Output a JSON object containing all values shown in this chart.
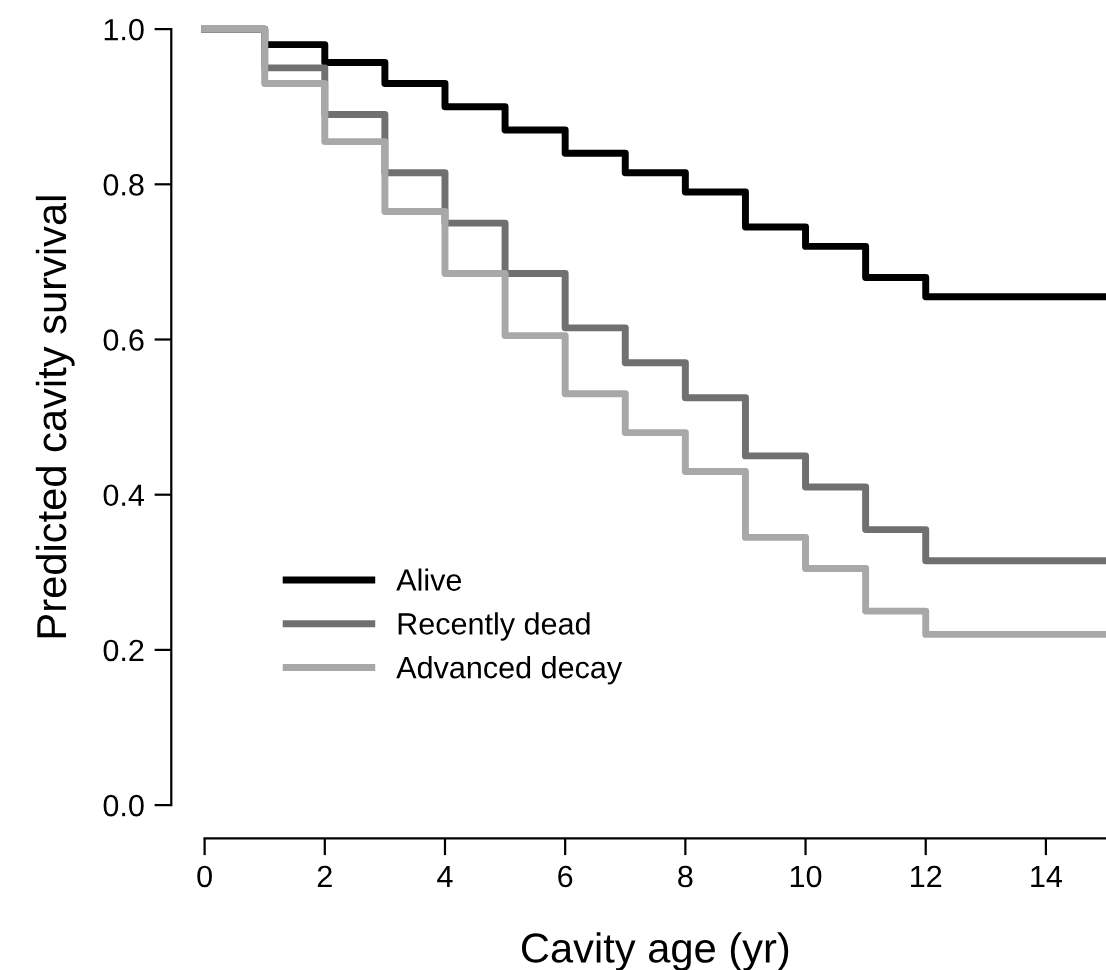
{
  "chart_data": {
    "type": "step",
    "xlabel": "Cavity age (yr)",
    "ylabel": "Predicted cavity survival",
    "xlim": [
      0,
      15
    ],
    "xticks": [
      0,
      2,
      4,
      6,
      8,
      10,
      12,
      14
    ],
    "ylim": [
      0,
      1
    ],
    "yticks": [
      {
        "value": 0,
        "label": "0.0"
      },
      {
        "value": 0.2,
        "label": "0.2"
      },
      {
        "value": 0.4,
        "label": "0.4"
      },
      {
        "value": 0.6,
        "label": "0.6"
      },
      {
        "value": 0.8,
        "label": "0.8"
      },
      {
        "value": 1,
        "label": "1.0"
      }
    ],
    "grid": false,
    "legend": "bottom left",
    "marker": "none",
    "line_style": "solid",
    "series": [
      {
        "name": "Alive",
        "color": "#000000",
        "x": [
          0,
          1,
          2,
          3,
          4,
          5,
          6,
          7,
          8,
          9,
          10,
          11,
          12,
          15
        ],
        "values": [
          1.0,
          0.98,
          0.957,
          0.93,
          0.9,
          0.87,
          0.84,
          0.815,
          0.79,
          0.745,
          0.72,
          0.68,
          0.655,
          0.655
        ]
      },
      {
        "name": "Recently dead",
        "color": "#707070",
        "x": [
          0,
          1,
          2,
          3,
          4,
          5,
          6,
          7,
          8,
          9,
          10,
          11,
          12,
          15
        ],
        "values": [
          1.0,
          0.95,
          0.89,
          0.815,
          0.75,
          0.685,
          0.615,
          0.57,
          0.525,
          0.45,
          0.41,
          0.355,
          0.315,
          0.315
        ]
      },
      {
        "name": "Advanced decay",
        "color": "#a8a8a8",
        "x": [
          0,
          1,
          2,
          3,
          4,
          5,
          6,
          7,
          8,
          9,
          10,
          11,
          12,
          15
        ],
        "values": [
          1.0,
          0.93,
          0.855,
          0.765,
          0.685,
          0.605,
          0.53,
          0.48,
          0.43,
          0.345,
          0.305,
          0.25,
          0.22,
          0.22
        ]
      }
    ]
  }
}
